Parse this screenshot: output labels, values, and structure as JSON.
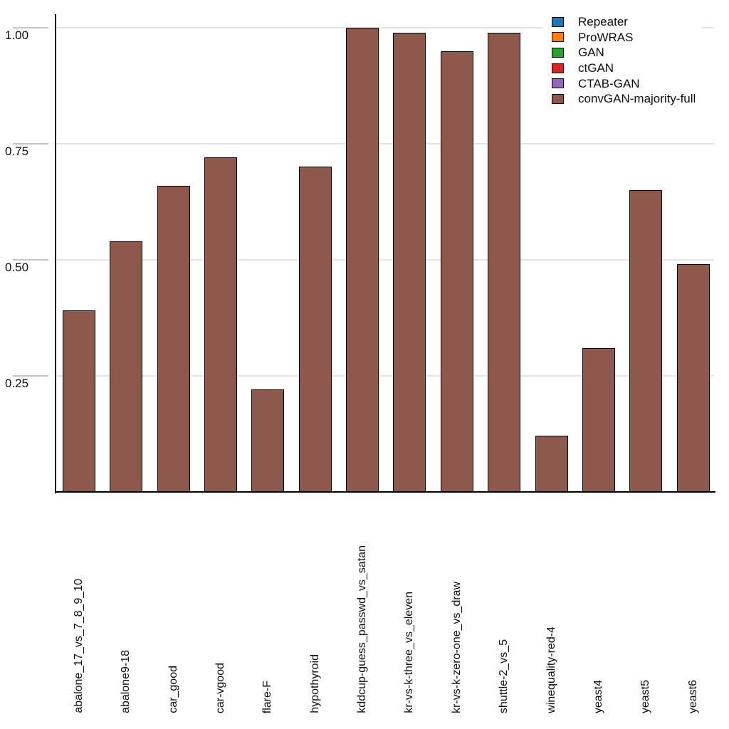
{
  "chart_data": {
    "type": "bar",
    "title": "",
    "xlabel": "",
    "ylabel": "",
    "categories": [
      "abalone_17_vs_7_8_9_10",
      "abalone9-18",
      "car_good",
      "car-vgood",
      "flare-F",
      "hypothyroid",
      "kddcup-guess_passwd_vs_satan",
      "kr-vs-k-three_vs_eleven",
      "kr-vs-k-zero-one_vs_draw",
      "shuttle-2_vs_5",
      "winequality-red-4",
      "yeast4",
      "yeast5",
      "yeast6"
    ],
    "values": [
      0.39,
      0.54,
      0.66,
      0.72,
      0.22,
      0.7,
      1.0,
      0.99,
      0.95,
      0.99,
      0.12,
      0.31,
      0.65,
      0.49
    ],
    "visible_series": "convGAN-majority-full",
    "bar_color": "#8d594d",
    "bar_edge_color": "#000000",
    "yticks": [
      {
        "value": 0.25,
        "label": "0.25"
      },
      {
        "value": 0.5,
        "label": "0.50"
      },
      {
        "value": 0.75,
        "label": "0.75"
      },
      {
        "value": 1.0,
        "label": "1.00"
      }
    ],
    "ylim": [
      0,
      1.03
    ],
    "grid": "horizontal",
    "legend_position": "top-right",
    "legend": [
      {
        "label": "Repeater",
        "color": "#1f77b4"
      },
      {
        "label": "ProWRAS",
        "color": "#ff7f0e"
      },
      {
        "label": "GAN",
        "color": "#2ca02c"
      },
      {
        "label": "ctGAN",
        "color": "#d62728"
      },
      {
        "label": "CTAB-GAN",
        "color": "#9467bd"
      },
      {
        "label": "convGAN-majority-full",
        "color": "#8c564b"
      }
    ]
  }
}
